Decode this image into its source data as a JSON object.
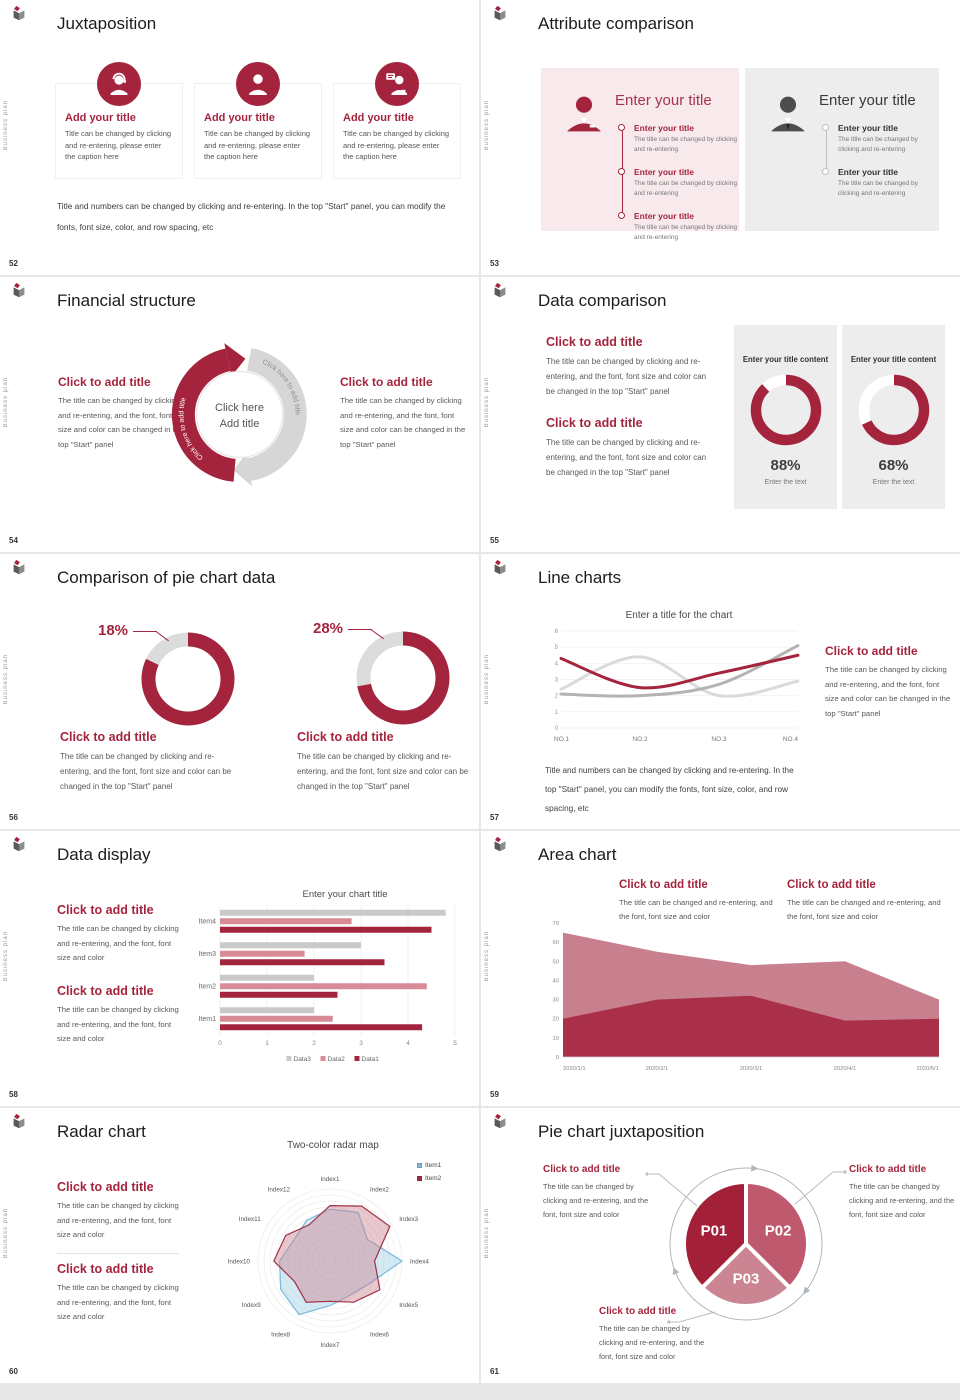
{
  "sidebar_label": "Business plan",
  "colors": {
    "brand_red": "#a5243d",
    "pink_mid": "#c05a6d",
    "pink_light": "#cd8995",
    "panel_pink": "#f8e9ec",
    "panel_gray": "#ededed",
    "bar_gray": "#c9c9c9",
    "bar_pink": "#d78b97"
  },
  "slides": {
    "s52": {
      "page": "52",
      "title": "Juxtaposition",
      "cards": [
        {
          "title": "Add your title",
          "caption": "Title can be changed by clicking and re-entering, please enter the caption here"
        },
        {
          "title": "Add your title",
          "caption": "Title can be changed by clicking and re-entering, please enter the caption here"
        },
        {
          "title": "Add your title",
          "caption": "Title can be changed by clicking and re-entering, please enter the caption here"
        }
      ],
      "note": "Title and numbers can be changed by clicking and re-entering. In the top \"Start\" panel, you can modify the fonts, font size, color, and row spacing, etc"
    },
    "s53": {
      "page": "53",
      "title": "Attribute comparison",
      "left_panel": {
        "title": "Enter your title",
        "items": [
          {
            "title": "Enter your title",
            "caption": "The title can be changed by clicking and re-entering"
          },
          {
            "title": "Enter your title",
            "caption": "The title can be changed by clicking and re-entering"
          },
          {
            "title": "Enter your title",
            "caption": "The title can be changed by clicking and re-entering"
          }
        ]
      },
      "right_panel": {
        "title": "Enter your title",
        "items": [
          {
            "title": "Enter your title",
            "caption": "The title can be changed by clicking and re-entering"
          },
          {
            "title": "Enter your title",
            "caption": "The title can be changed by clicking and re-entering"
          }
        ]
      }
    },
    "s54": {
      "page": "54",
      "title": "Financial structure",
      "left": {
        "title": "Click to add title",
        "caption": "The title can be changed by clicking and re-entering, and the font, font size and color can be changed in the top \"Start\" panel"
      },
      "right": {
        "title": "Click to add title",
        "caption": "The title can be changed by clicking and re-entering, and the font, font size and color can be changed in the top \"Start\" panel"
      },
      "center_line1": "Click here",
      "center_line2": "Add title",
      "arc_label_left": "Click here to add title",
      "arc_label_right": "Click here to add title"
    },
    "s55": {
      "page": "55",
      "title": "Data comparison",
      "blocks": [
        {
          "title": "Click to add title",
          "caption": "The title can be changed by clicking and re-entering, and the font, font size and color can be changed in the top \"Start\" panel"
        },
        {
          "title": "Click to add title",
          "caption": "The title can be changed by clicking and re-entering, and the font, font size and color can be changed in the top \"Start\" panel"
        }
      ],
      "cards": [
        {
          "title": "Enter your title content",
          "sub": "Enter the text"
        },
        {
          "title": "Enter your title content",
          "sub": "Enter the text"
        }
      ]
    },
    "s56": {
      "page": "56",
      "title": "Comparison of pie chart data",
      "blocks": [
        {
          "title": "Click to add title",
          "caption": "The title can be changed by clicking and re-entering, and the font, font size and color can be changed in the top \"Start\" panel"
        },
        {
          "title": "Click to add title",
          "caption": "The title can be changed by clicking and re-entering, and the font, font size and color can be changed in the top \"Start\" panel"
        }
      ]
    },
    "s57": {
      "page": "57",
      "title": "Line charts",
      "block": {
        "title": "Click to add title",
        "caption": "The title can be changed by clicking and re-entering, and the font, font size and color can be changed in the top \"Start\" panel"
      },
      "note": "Title and numbers can be changed by clicking and re-entering. In the top \"Start\" panel, you can modify the fonts, font size, color, and row spacing, etc"
    },
    "s58": {
      "page": "58",
      "title": "Data display",
      "blocks": [
        {
          "title": "Click to add title",
          "caption": "The title can be changed by clicking and re-entering, and the font, font size and color"
        },
        {
          "title": "Click to add title",
          "caption": "The title can be changed by clicking and re-entering, and the font, font size and color"
        }
      ]
    },
    "s59": {
      "page": "59",
      "title": "Area chart",
      "blocks": [
        {
          "title": "Click to add title",
          "caption": "The title can be changed and re-entering, and the font, font size and color"
        },
        {
          "title": "Click to add title",
          "caption": "The title can be changed and re-entering, and the font, font size and color"
        }
      ]
    },
    "s60": {
      "page": "60",
      "title": "Radar chart",
      "blocks": [
        {
          "title": "Click to add title",
          "caption": "The title can be changed by clicking and re-entering, and the font, font size and color"
        },
        {
          "title": "Click to add title",
          "caption": "The title can be changed by clicking and re-entering, and the font, font size and color"
        }
      ]
    },
    "s61": {
      "page": "61",
      "title": "Pie chart juxtaposition",
      "blocks": [
        {
          "title": "Click to add title",
          "caption": "The title can be changed by clicking and re-entering, and the font, font size and color"
        },
        {
          "title": "Click to add title",
          "caption": "The title can be changed by clicking and re-entering, and the font, font size and color"
        },
        {
          "title": "Click to add title",
          "caption": "The title can be changed by clicking and re-entering, and the font, font size and color"
        }
      ]
    }
  },
  "chart_data": [
    {
      "id": "donut88",
      "type": "donut",
      "value": 88,
      "display_label": "88%",
      "r": 30,
      "ring": 10.5,
      "color": "#a5243d",
      "rest": "#ffffff"
    },
    {
      "id": "donut68",
      "type": "donut",
      "value": 68,
      "display_label": "68%",
      "r": 30,
      "ring": 10.5,
      "color": "#a5243d",
      "rest": "#ffffff"
    },
    {
      "id": "donut18",
      "type": "donut",
      "value": 82,
      "display_label": "18%",
      "r": 39.5,
      "ring": 14,
      "color": "#a5243d",
      "rest": "#dcdcdc"
    },
    {
      "id": "donut28",
      "type": "donut",
      "value": 72,
      "display_label": "28%",
      "r": 39.5,
      "ring": 14,
      "color": "#a5243d",
      "rest": "#dcdcdc"
    },
    {
      "id": "line57",
      "type": "line",
      "title": "Enter a title for the chart",
      "categories": [
        "NO.1",
        "NO.2",
        "NO.3",
        "NO.4"
      ],
      "ylim": [
        0,
        6
      ],
      "yticks": [
        0,
        1,
        2,
        3,
        4,
        5,
        6
      ],
      "series": [
        {
          "name": "gray-light",
          "color": "#dadada",
          "width": 3,
          "values": [
            2.4,
            4.4,
            2.0,
            2.9
          ]
        },
        {
          "name": "gray-dark",
          "color": "#b3b3b3",
          "width": 3,
          "values": [
            2.1,
            2.0,
            2.7,
            5.1
          ]
        },
        {
          "name": "red",
          "color": "#a5243d",
          "width": 3,
          "values": [
            4.3,
            2.5,
            3.4,
            4.5
          ]
        }
      ]
    },
    {
      "id": "bars58",
      "type": "bar",
      "title": "Enter your chart title",
      "categories": [
        "Item1",
        "Item2",
        "Item3",
        "Item4"
      ],
      "xlim": [
        0,
        5
      ],
      "xticks": [
        0,
        1,
        2,
        3,
        4,
        5
      ],
      "series": [
        {
          "name": "Data3",
          "color": "#c9c9c9",
          "values": [
            2.0,
            2.0,
            3.0,
            4.8
          ]
        },
        {
          "name": "Data2",
          "color": "#d78b97",
          "values": [
            2.4,
            4.4,
            1.8,
            2.8
          ]
        },
        {
          "name": "Data1",
          "color": "#a5243d",
          "values": [
            4.3,
            2.5,
            3.5,
            4.5
          ]
        }
      ],
      "legend": [
        "Data3",
        "Data2",
        "Data1"
      ]
    },
    {
      "id": "area59",
      "type": "area",
      "categories": [
        "2020/1/1",
        "2020/2/1",
        "2020/3/1",
        "2020/4/1",
        "2020/5/1"
      ],
      "ylim": [
        0,
        70
      ],
      "yticks": [
        0,
        10,
        20,
        30,
        40,
        50,
        60,
        70
      ],
      "series": [
        {
          "name": "upper",
          "color": "#c8808e",
          "values": [
            65,
            55,
            48,
            50,
            30
          ]
        },
        {
          "name": "lower",
          "color": "#a93048",
          "values": [
            20,
            30,
            32,
            19,
            20
          ]
        }
      ]
    },
    {
      "id": "radar60",
      "type": "radar",
      "title": "Two-color radar map",
      "r": 72,
      "max": 1,
      "categories": [
        "Index1",
        "Index2",
        "Index3",
        "Index4",
        "Index5",
        "Index6",
        "Index7",
        "Index8",
        "Index9",
        "Index10",
        "Index11",
        "Index12"
      ],
      "series": [
        {
          "name": "Item1",
          "color": "#7cb9da",
          "fill": "rgba(158,209,232,0.45)",
          "values": [
            0.72,
            0.78,
            0.6,
            1.0,
            0.63,
            0.55,
            0.62,
            0.86,
            0.79,
            0.7,
            0.58,
            0.65
          ]
        },
        {
          "name": "Item2",
          "color": "#a03048",
          "fill": "rgba(204,130,144,0.45)",
          "values": [
            0.77,
            0.88,
            0.96,
            0.62,
            0.8,
            0.66,
            0.56,
            0.66,
            0.57,
            0.78,
            0.71,
            0.58
          ]
        }
      ]
    },
    {
      "id": "pie61",
      "type": "pie",
      "r": 62,
      "outer_r": 76,
      "ring_arrows": [
        4,
        126,
        247
      ],
      "slices": [
        {
          "label": "P01",
          "value": 37.5,
          "start": 225,
          "color": "#a32138"
        },
        {
          "label": "P02",
          "value": 37.5,
          "start": 0,
          "color": "#bf5a6e"
        },
        {
          "label": "P03",
          "value": 25,
          "start": 135,
          "color": "#cb8592"
        }
      ]
    }
  ]
}
